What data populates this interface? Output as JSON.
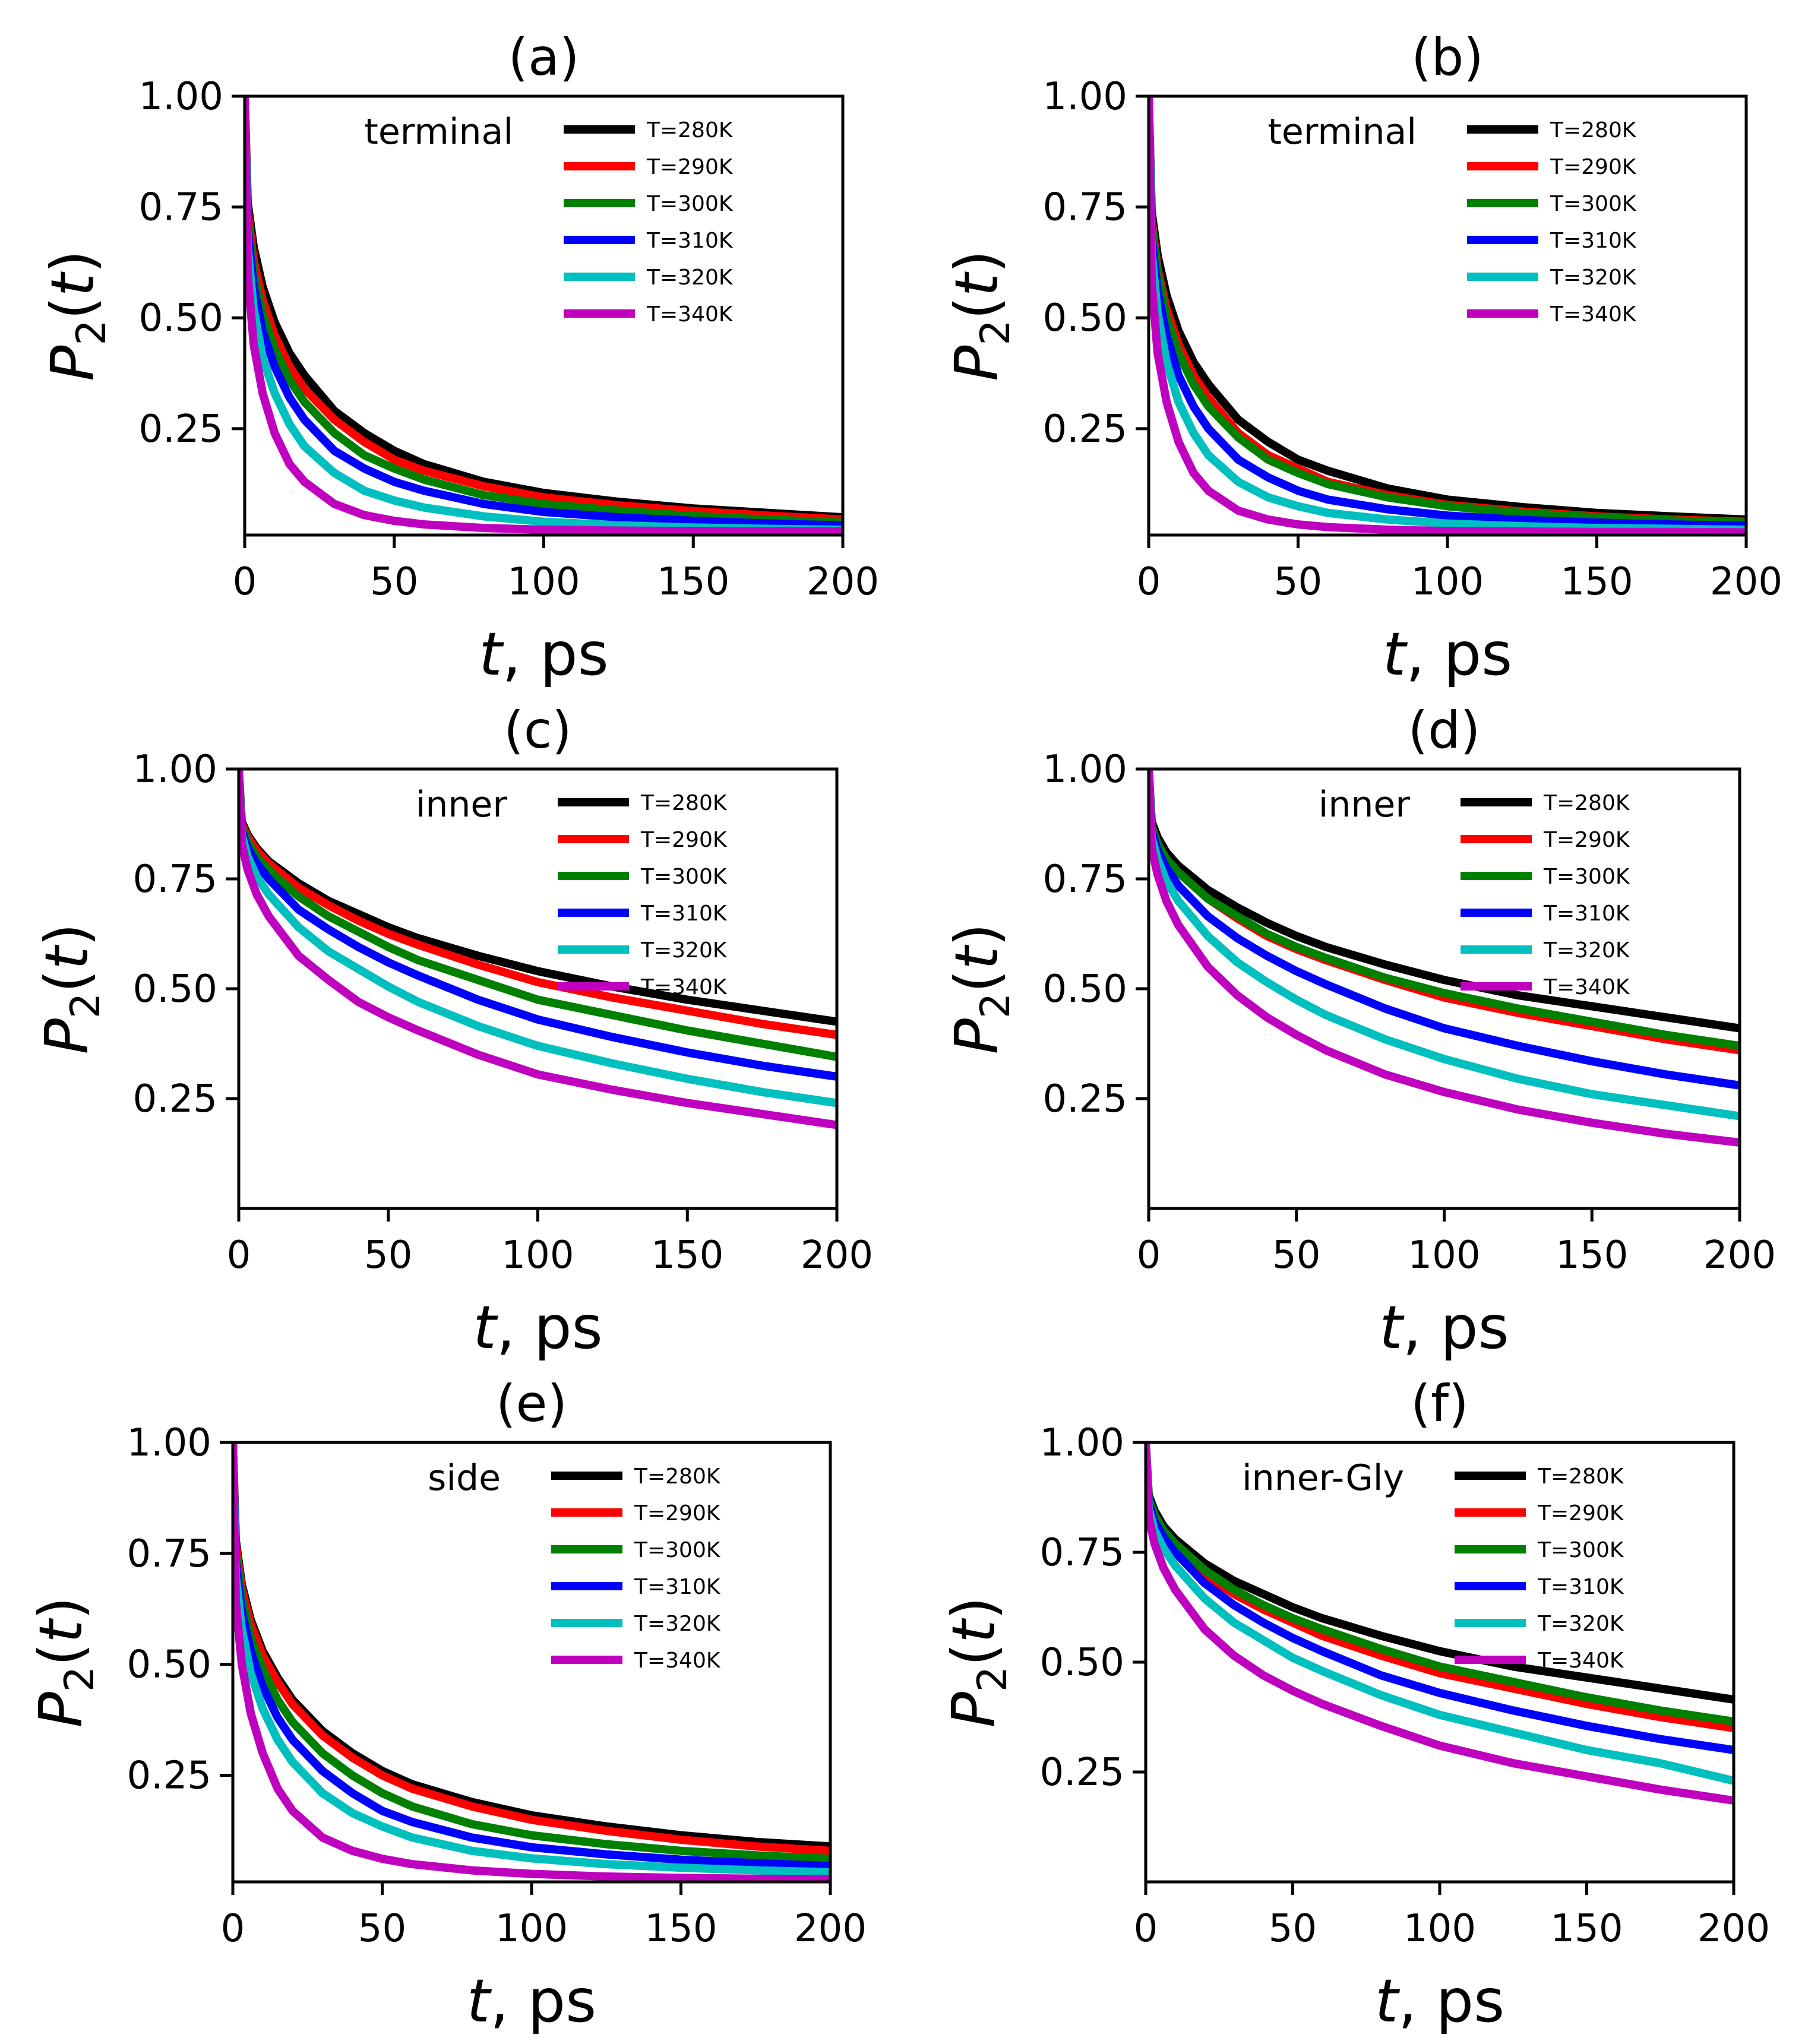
{
  "chart_data": [
    {
      "type": "line",
      "panel_label": "(a)",
      "inset_label": "terminal",
      "xlabel_var": "t",
      "xlabel_unit": ", ps",
      "ylabel_var": "P",
      "ylabel_sub": "2",
      "ylabel_arg": "(t)",
      "xlim": [
        0,
        200
      ],
      "ylim": [
        0.01,
        1.0
      ],
      "xticks": [
        "0",
        "50",
        "100",
        "150",
        "200"
      ],
      "yticks": [
        "0.25",
        "0.50",
        "0.75",
        "1.00"
      ],
      "legend_position": "top-right",
      "x": [
        0,
        1,
        3,
        6,
        10,
        15,
        20,
        30,
        40,
        50,
        60,
        80,
        100,
        125,
        150,
        175,
        200
      ],
      "series": [
        {
          "name": "T=280K",
          "color": "#000000",
          "values": [
            1.0,
            0.76,
            0.66,
            0.57,
            0.49,
            0.42,
            0.37,
            0.29,
            0.24,
            0.2,
            0.17,
            0.13,
            0.105,
            0.085,
            0.07,
            0.06,
            0.05
          ]
        },
        {
          "name": "T=290K",
          "color": "#ff0000",
          "values": [
            1.0,
            0.74,
            0.63,
            0.54,
            0.46,
            0.39,
            0.34,
            0.27,
            0.22,
            0.18,
            0.155,
            0.12,
            0.095,
            0.077,
            0.064,
            0.054,
            0.045
          ]
        },
        {
          "name": "T=300K",
          "color": "#008000",
          "values": [
            1.0,
            0.72,
            0.6,
            0.51,
            0.43,
            0.36,
            0.31,
            0.24,
            0.19,
            0.16,
            0.135,
            0.1,
            0.08,
            0.065,
            0.053,
            0.045,
            0.038
          ]
        },
        {
          "name": "T=310K",
          "color": "#0000ff",
          "values": [
            1.0,
            0.7,
            0.57,
            0.47,
            0.39,
            0.32,
            0.27,
            0.2,
            0.16,
            0.13,
            0.11,
            0.08,
            0.062,
            0.05,
            0.042,
            0.036,
            0.032
          ]
        },
        {
          "name": "T=320K",
          "color": "#00bfbf",
          "values": [
            1.0,
            0.66,
            0.52,
            0.41,
            0.33,
            0.26,
            0.21,
            0.15,
            0.11,
            0.088,
            0.072,
            0.052,
            0.04,
            0.032,
            0.027,
            0.024,
            0.022
          ]
        },
        {
          "name": "T=340K",
          "color": "#bf00bf",
          "values": [
            1.0,
            0.6,
            0.44,
            0.33,
            0.24,
            0.17,
            0.13,
            0.08,
            0.055,
            0.042,
            0.034,
            0.026,
            0.022,
            0.02,
            0.019,
            0.018,
            0.018
          ]
        }
      ]
    },
    {
      "type": "line",
      "panel_label": "(b)",
      "inset_label": "terminal",
      "xlabel_var": "t",
      "xlabel_unit": ", ps",
      "ylabel_var": "P",
      "ylabel_sub": "2",
      "ylabel_arg": "(t)",
      "xlim": [
        0,
        200
      ],
      "ylim": [
        0.01,
        1.0
      ],
      "xticks": [
        "0",
        "50",
        "100",
        "150",
        "200"
      ],
      "yticks": [
        "0.25",
        "0.50",
        "0.75",
        "1.00"
      ],
      "legend_position": "top-right",
      "x": [
        0,
        1,
        3,
        6,
        10,
        15,
        20,
        30,
        40,
        50,
        60,
        80,
        100,
        125,
        150,
        175,
        200
      ],
      "series": [
        {
          "name": "T=280K",
          "color": "#000000",
          "values": [
            1.0,
            0.74,
            0.64,
            0.55,
            0.47,
            0.4,
            0.35,
            0.27,
            0.22,
            0.18,
            0.155,
            0.115,
            0.09,
            0.073,
            0.06,
            0.052,
            0.045
          ]
        },
        {
          "name": "T=290K",
          "color": "#ff0000",
          "values": [
            1.0,
            0.72,
            0.61,
            0.52,
            0.44,
            0.37,
            0.32,
            0.24,
            0.19,
            0.16,
            0.13,
            0.1,
            0.078,
            0.063,
            0.052,
            0.045,
            0.04
          ]
        },
        {
          "name": "T=300K",
          "color": "#008000",
          "values": [
            1.0,
            0.71,
            0.6,
            0.5,
            0.42,
            0.35,
            0.3,
            0.23,
            0.18,
            0.15,
            0.125,
            0.095,
            0.075,
            0.06,
            0.05,
            0.043,
            0.038
          ]
        },
        {
          "name": "T=310K",
          "color": "#0000ff",
          "values": [
            1.0,
            0.68,
            0.56,
            0.46,
            0.37,
            0.3,
            0.25,
            0.18,
            0.14,
            0.11,
            0.09,
            0.068,
            0.054,
            0.044,
            0.038,
            0.034,
            0.031
          ]
        },
        {
          "name": "T=320K",
          "color": "#00bfbf",
          "values": [
            1.0,
            0.65,
            0.51,
            0.4,
            0.31,
            0.24,
            0.19,
            0.13,
            0.095,
            0.075,
            0.06,
            0.045,
            0.036,
            0.03,
            0.026,
            0.024,
            0.022
          ]
        },
        {
          "name": "T=340K",
          "color": "#bf00bf",
          "values": [
            1.0,
            0.58,
            0.42,
            0.31,
            0.22,
            0.15,
            0.11,
            0.065,
            0.045,
            0.034,
            0.028,
            0.022,
            0.019,
            0.018,
            0.017,
            0.017,
            0.016
          ]
        }
      ]
    },
    {
      "type": "line",
      "panel_label": "(c)",
      "inset_label": "inner",
      "xlabel_var": "t",
      "xlabel_unit": ", ps",
      "ylabel_var": "P",
      "ylabel_sub": "2",
      "ylabel_arg": "(t)",
      "xlim": [
        0,
        200
      ],
      "ylim": [
        0.0,
        1.0
      ],
      "xticks": [
        "0",
        "50",
        "100",
        "150",
        "200"
      ],
      "yticks": [
        "0.25",
        "0.50",
        "0.75",
        "1.00"
      ],
      "legend_position": "top-right",
      "x": [
        0,
        1,
        3,
        6,
        10,
        20,
        30,
        40,
        50,
        60,
        80,
        100,
        125,
        150,
        175,
        200
      ],
      "series": [
        {
          "name": "T=280K",
          "color": "#000000",
          "values": [
            1.0,
            0.88,
            0.85,
            0.82,
            0.79,
            0.74,
            0.7,
            0.67,
            0.64,
            0.615,
            0.575,
            0.54,
            0.505,
            0.475,
            0.45,
            0.425
          ]
        },
        {
          "name": "T=290K",
          "color": "#ff0000",
          "values": [
            1.0,
            0.875,
            0.845,
            0.815,
            0.785,
            0.73,
            0.69,
            0.655,
            0.625,
            0.6,
            0.555,
            0.515,
            0.48,
            0.45,
            0.42,
            0.395
          ]
        },
        {
          "name": "T=300K",
          "color": "#008000",
          "values": [
            1.0,
            0.87,
            0.835,
            0.8,
            0.77,
            0.71,
            0.665,
            0.63,
            0.595,
            0.565,
            0.52,
            0.475,
            0.44,
            0.405,
            0.375,
            0.345
          ]
        },
        {
          "name": "T=310K",
          "color": "#0000ff",
          "values": [
            1.0,
            0.86,
            0.82,
            0.785,
            0.75,
            0.68,
            0.635,
            0.595,
            0.56,
            0.53,
            0.475,
            0.43,
            0.39,
            0.355,
            0.325,
            0.3
          ]
        },
        {
          "name": "T=320K",
          "color": "#00bfbf",
          "values": [
            1.0,
            0.85,
            0.8,
            0.755,
            0.715,
            0.64,
            0.585,
            0.545,
            0.505,
            0.47,
            0.415,
            0.37,
            0.33,
            0.295,
            0.265,
            0.24
          ]
        },
        {
          "name": "T=340K",
          "color": "#bf00bf",
          "values": [
            1.0,
            0.83,
            0.77,
            0.715,
            0.665,
            0.575,
            0.52,
            0.47,
            0.435,
            0.405,
            0.35,
            0.305,
            0.27,
            0.24,
            0.215,
            0.19
          ]
        }
      ]
    },
    {
      "type": "line",
      "panel_label": "(d)",
      "inset_label": "inner",
      "xlabel_var": "t",
      "xlabel_unit": ", ps",
      "ylabel_var": "P",
      "ylabel_sub": "2",
      "ylabel_arg": "(t)",
      "xlim": [
        0,
        200
      ],
      "ylim": [
        0.0,
        1.0
      ],
      "xticks": [
        "0",
        "50",
        "100",
        "150",
        "200"
      ],
      "yticks": [
        "0.25",
        "0.50",
        "0.75",
        "1.00"
      ],
      "legend_position": "top-right",
      "x": [
        0,
        1,
        3,
        6,
        10,
        20,
        30,
        40,
        50,
        60,
        80,
        100,
        125,
        150,
        175,
        200
      ],
      "series": [
        {
          "name": "T=280K",
          "color": "#000000",
          "values": [
            1.0,
            0.88,
            0.845,
            0.81,
            0.78,
            0.725,
            0.685,
            0.65,
            0.62,
            0.595,
            0.555,
            0.52,
            0.485,
            0.46,
            0.435,
            0.41
          ]
        },
        {
          "name": "T=290K",
          "color": "#ff0000",
          "values": [
            1.0,
            0.87,
            0.83,
            0.795,
            0.765,
            0.705,
            0.66,
            0.62,
            0.59,
            0.565,
            0.52,
            0.48,
            0.445,
            0.415,
            0.385,
            0.36
          ]
        },
        {
          "name": "T=300K",
          "color": "#008000",
          "values": [
            1.0,
            0.87,
            0.83,
            0.795,
            0.765,
            0.705,
            0.665,
            0.625,
            0.595,
            0.57,
            0.525,
            0.49,
            0.455,
            0.425,
            0.395,
            0.37
          ]
        },
        {
          "name": "T=310K",
          "color": "#0000ff",
          "values": [
            1.0,
            0.86,
            0.815,
            0.775,
            0.735,
            0.665,
            0.615,
            0.575,
            0.54,
            0.51,
            0.455,
            0.41,
            0.37,
            0.335,
            0.305,
            0.28
          ]
        },
        {
          "name": "T=320K",
          "color": "#00bfbf",
          "values": [
            1.0,
            0.845,
            0.795,
            0.745,
            0.7,
            0.62,
            0.56,
            0.515,
            0.475,
            0.44,
            0.385,
            0.34,
            0.295,
            0.26,
            0.235,
            0.21
          ]
        },
        {
          "name": "T=340K",
          "color": "#bf00bf",
          "values": [
            1.0,
            0.82,
            0.76,
            0.7,
            0.645,
            0.55,
            0.485,
            0.435,
            0.395,
            0.36,
            0.305,
            0.265,
            0.225,
            0.195,
            0.17,
            0.15
          ]
        }
      ]
    },
    {
      "type": "line",
      "panel_label": "(e)",
      "inset_label": "side",
      "xlabel_var": "t",
      "xlabel_unit": ", ps",
      "ylabel_var": "P",
      "ylabel_sub": "2",
      "ylabel_arg": "(t)",
      "xlim": [
        0,
        200
      ],
      "ylim": [
        0.01,
        1.0
      ],
      "xticks": [
        "0",
        "50",
        "100",
        "150",
        "200"
      ],
      "yticks": [
        "0.25",
        "0.50",
        "0.75",
        "1.00"
      ],
      "legend_position": "top-right",
      "x": [
        0,
        1,
        3,
        6,
        10,
        15,
        20,
        30,
        40,
        50,
        60,
        80,
        100,
        125,
        150,
        175,
        200
      ],
      "series": [
        {
          "name": "T=280K",
          "color": "#000000",
          "values": [
            1.0,
            0.78,
            0.68,
            0.6,
            0.53,
            0.47,
            0.42,
            0.35,
            0.3,
            0.26,
            0.23,
            0.19,
            0.16,
            0.135,
            0.115,
            0.1,
            0.09
          ]
        },
        {
          "name": "T=290K",
          "color": "#ff0000",
          "values": [
            1.0,
            0.77,
            0.67,
            0.59,
            0.52,
            0.46,
            0.41,
            0.34,
            0.29,
            0.25,
            0.22,
            0.18,
            0.15,
            0.125,
            0.105,
            0.09,
            0.08
          ]
        },
        {
          "name": "T=300K",
          "color": "#008000",
          "values": [
            1.0,
            0.75,
            0.65,
            0.56,
            0.49,
            0.42,
            0.37,
            0.3,
            0.25,
            0.21,
            0.18,
            0.14,
            0.115,
            0.095,
            0.08,
            0.07,
            0.062
          ]
        },
        {
          "name": "T=310K",
          "color": "#0000ff",
          "values": [
            1.0,
            0.73,
            0.62,
            0.53,
            0.45,
            0.38,
            0.33,
            0.26,
            0.21,
            0.17,
            0.145,
            0.11,
            0.088,
            0.072,
            0.06,
            0.052,
            0.046
          ]
        },
        {
          "name": "T=320K",
          "color": "#00bfbf",
          "values": [
            1.0,
            0.7,
            0.58,
            0.48,
            0.4,
            0.33,
            0.28,
            0.21,
            0.165,
            0.135,
            0.11,
            0.08,
            0.063,
            0.05,
            0.042,
            0.036,
            0.032
          ]
        },
        {
          "name": "T=340K",
          "color": "#bf00bf",
          "values": [
            1.0,
            0.64,
            0.5,
            0.39,
            0.3,
            0.22,
            0.17,
            0.11,
            0.08,
            0.062,
            0.05,
            0.036,
            0.028,
            0.022,
            0.019,
            0.017,
            0.016
          ]
        }
      ]
    },
    {
      "type": "line",
      "panel_label": "(f)",
      "inset_label": "inner-Gly",
      "xlabel_var": "t",
      "xlabel_unit": ", ps",
      "ylabel_var": "P",
      "ylabel_sub": "2",
      "ylabel_arg": "(t)",
      "xlim": [
        0,
        200
      ],
      "ylim": [
        0.0,
        1.0
      ],
      "xticks": [
        "0",
        "50",
        "100",
        "150",
        "200"
      ],
      "yticks": [
        "0.25",
        "0.50",
        "0.75",
        "1.00"
      ],
      "legend_position": "top-right",
      "x": [
        0,
        1,
        3,
        6,
        10,
        20,
        30,
        40,
        50,
        60,
        80,
        100,
        125,
        150,
        175,
        200
      ],
      "series": [
        {
          "name": "T=280K",
          "color": "#000000",
          "values": [
            1.0,
            0.88,
            0.845,
            0.81,
            0.78,
            0.725,
            0.685,
            0.655,
            0.625,
            0.6,
            0.56,
            0.525,
            0.49,
            0.465,
            0.44,
            0.415
          ]
        },
        {
          "name": "T=290K",
          "color": "#ff0000",
          "values": [
            1.0,
            0.87,
            0.83,
            0.795,
            0.76,
            0.7,
            0.655,
            0.62,
            0.59,
            0.56,
            0.515,
            0.475,
            0.44,
            0.405,
            0.375,
            0.35
          ]
        },
        {
          "name": "T=300K",
          "color": "#008000",
          "values": [
            1.0,
            0.87,
            0.835,
            0.8,
            0.77,
            0.71,
            0.665,
            0.63,
            0.6,
            0.575,
            0.53,
            0.49,
            0.455,
            0.42,
            0.39,
            0.365
          ]
        },
        {
          "name": "T=310K",
          "color": "#0000ff",
          "values": [
            1.0,
            0.86,
            0.82,
            0.785,
            0.75,
            0.68,
            0.63,
            0.59,
            0.555,
            0.525,
            0.47,
            0.43,
            0.39,
            0.355,
            0.325,
            0.3
          ]
        },
        {
          "name": "T=320K",
          "color": "#00bfbf",
          "values": [
            1.0,
            0.85,
            0.8,
            0.76,
            0.72,
            0.645,
            0.59,
            0.55,
            0.51,
            0.48,
            0.425,
            0.38,
            0.34,
            0.3,
            0.27,
            0.23
          ]
        },
        {
          "name": "T=340K",
          "color": "#bf00bf",
          "values": [
            1.0,
            0.83,
            0.77,
            0.715,
            0.665,
            0.575,
            0.515,
            0.47,
            0.435,
            0.405,
            0.355,
            0.31,
            0.27,
            0.24,
            0.21,
            0.185
          ]
        }
      ]
    }
  ]
}
